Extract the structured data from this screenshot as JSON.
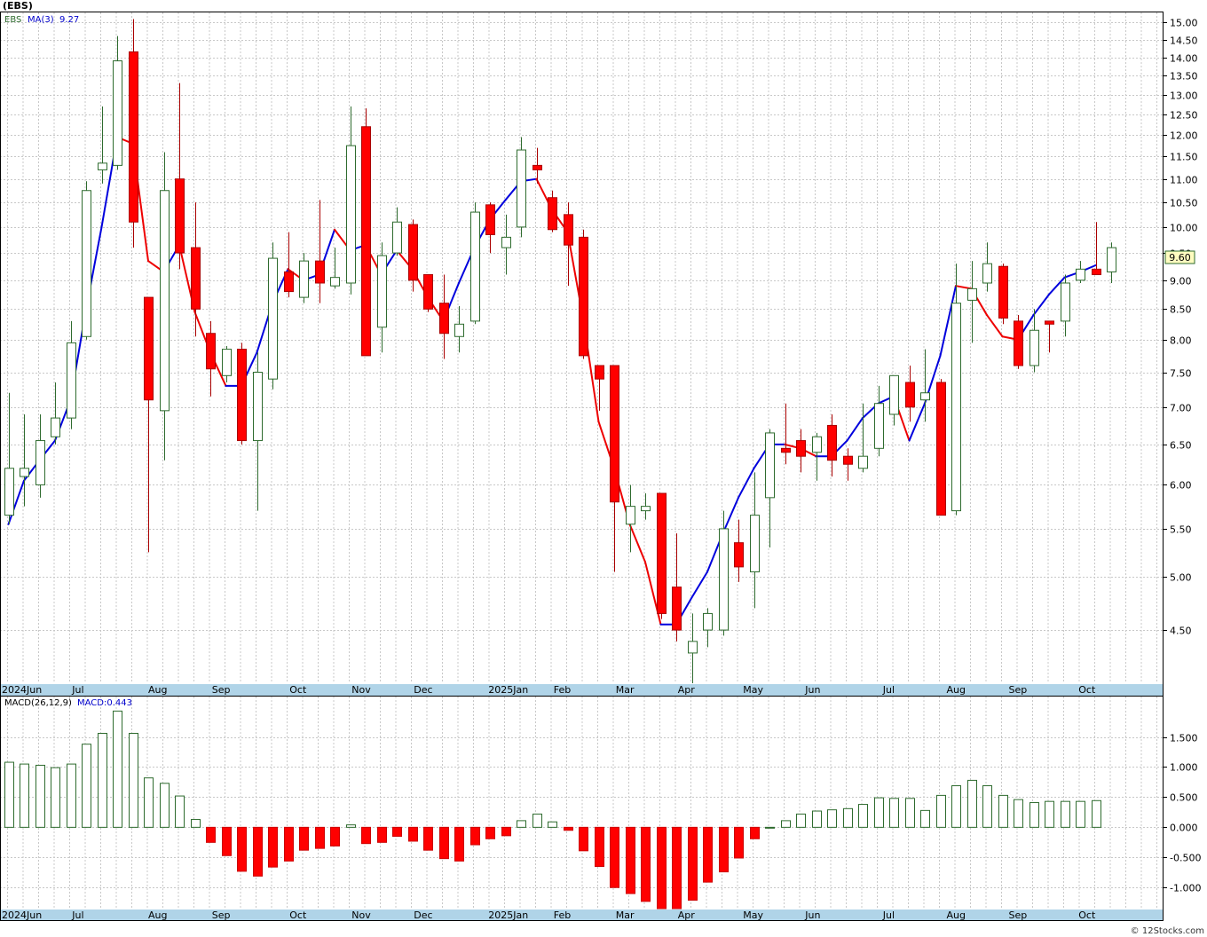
{
  "header": {
    "symbol": "(EBS)",
    "legend_ticker": "EBS",
    "legend_ma": "MA(3)",
    "legend_ma_value": "9.27",
    "last_price": "9.60"
  },
  "macd_legend": {
    "label": "MACD(26,12,9)",
    "value": "MACD:0.443"
  },
  "footer": {
    "credit": "© 12Stocks.com"
  },
  "colors": {
    "up": "#2e6b2e",
    "down": "#ff0000",
    "ma_up": "#0000dd",
    "ma_down": "#ee0000",
    "axis_strip": "#b0d4e8",
    "grid": "#c8c8c8"
  },
  "chart_data": [
    {
      "type": "candlestick",
      "title": "",
      "interval": "weekly",
      "ylim": [
        4.05,
        15.3
      ],
      "y_scale": "log",
      "y_ticks": [
        "15.00",
        "14.50",
        "14.00",
        "13.50",
        "13.00",
        "12.50",
        "12.00",
        "11.50",
        "11.00",
        "10.50",
        "10.00",
        "9.50",
        "9.00",
        "8.50",
        "8.00",
        "7.50",
        "7.00",
        "6.50",
        "6.00",
        "5.50",
        "5.00",
        "4.50"
      ],
      "x_month_labels": [
        {
          "label": "2024Jun",
          "index": -0.4
        },
        {
          "label": "Jul",
          "index": 4.5
        },
        {
          "label": "Aug",
          "index": 9.4
        },
        {
          "label": "Sep",
          "index": 13.5
        },
        {
          "label": "Oct",
          "index": 18.5
        },
        {
          "label": "Nov",
          "index": 22.5
        },
        {
          "label": "Dec",
          "index": 26.5
        },
        {
          "label": "2025Jan",
          "index": 31.3
        },
        {
          "label": "Feb",
          "index": 35.5
        },
        {
          "label": "Mar",
          "index": 39.5
        },
        {
          "label": "Apr",
          "index": 43.5
        },
        {
          "label": "May",
          "index": 47.7
        },
        {
          "label": "Jun",
          "index": 51.7
        },
        {
          "label": "Jul",
          "index": 56.7
        },
        {
          "label": "Aug",
          "index": 60.8
        },
        {
          "label": "Sep",
          "index": 64.8
        },
        {
          "label": "Oct",
          "index": 69.3
        }
      ],
      "grid": true,
      "moving_average": {
        "name": "MA(3)",
        "last": 9.27
      },
      "candles": [
        {
          "o": 5.65,
          "h": 7.2,
          "l": 5.55,
          "c": 6.2
        },
        {
          "o": 6.1,
          "h": 6.9,
          "l": 5.75,
          "c": 6.2
        },
        {
          "o": 6.0,
          "h": 6.9,
          "l": 5.85,
          "c": 6.55
        },
        {
          "o": 6.6,
          "h": 7.35,
          "l": 6.5,
          "c": 6.85
        },
        {
          "o": 6.85,
          "h": 8.3,
          "l": 6.7,
          "c": 7.95
        },
        {
          "o": 8.05,
          "h": 10.95,
          "l": 8.0,
          "c": 10.75
        },
        {
          "o": 11.2,
          "h": 12.7,
          "l": 10.9,
          "c": 11.35
        },
        {
          "o": 11.3,
          "h": 14.6,
          "l": 11.2,
          "c": 13.9
        },
        {
          "o": 14.15,
          "h": 15.1,
          "l": 9.6,
          "c": 10.1
        },
        {
          "o": 8.7,
          "h": 8.7,
          "l": 5.25,
          "c": 7.1
        },
        {
          "o": 6.95,
          "h": 11.6,
          "l": 6.3,
          "c": 10.75
        },
        {
          "o": 11.0,
          "h": 13.3,
          "l": 9.2,
          "c": 9.5
        },
        {
          "o": 9.6,
          "h": 10.5,
          "l": 8.05,
          "c": 8.5
        },
        {
          "o": 8.1,
          "h": 8.3,
          "l": 7.15,
          "c": 7.55
        },
        {
          "o": 7.45,
          "h": 7.9,
          "l": 7.35,
          "c": 7.85
        },
        {
          "o": 7.85,
          "h": 7.95,
          "l": 6.5,
          "c": 6.55
        },
        {
          "o": 6.55,
          "h": 7.8,
          "l": 5.7,
          "c": 7.5
        },
        {
          "o": 7.4,
          "h": 9.7,
          "l": 7.25,
          "c": 9.4
        },
        {
          "o": 9.15,
          "h": 9.9,
          "l": 8.7,
          "c": 8.8
        },
        {
          "o": 8.7,
          "h": 9.5,
          "l": 8.6,
          "c": 9.35
        },
        {
          "o": 9.35,
          "h": 10.55,
          "l": 8.6,
          "c": 8.95
        },
        {
          "o": 8.9,
          "h": 9.6,
          "l": 8.85,
          "c": 9.05
        },
        {
          "o": 8.95,
          "h": 12.7,
          "l": 8.75,
          "c": 11.75
        },
        {
          "o": 12.2,
          "h": 12.65,
          "l": 7.75,
          "c": 7.75
        },
        {
          "o": 8.2,
          "h": 9.7,
          "l": 7.8,
          "c": 9.45
        },
        {
          "o": 9.5,
          "h": 10.4,
          "l": 9.45,
          "c": 10.1
        },
        {
          "o": 10.05,
          "h": 10.15,
          "l": 8.8,
          "c": 9.0
        },
        {
          "o": 9.1,
          "h": 9.1,
          "l": 8.45,
          "c": 8.5
        },
        {
          "o": 8.6,
          "h": 9.1,
          "l": 7.7,
          "c": 8.1
        },
        {
          "o": 8.05,
          "h": 8.55,
          "l": 7.8,
          "c": 8.25
        },
        {
          "o": 8.3,
          "h": 10.5,
          "l": 8.25,
          "c": 10.3
        },
        {
          "o": 10.45,
          "h": 10.5,
          "l": 9.5,
          "c": 9.85
        },
        {
          "o": 9.6,
          "h": 10.25,
          "l": 9.1,
          "c": 9.8
        },
        {
          "o": 10.0,
          "h": 11.95,
          "l": 9.8,
          "c": 11.65
        },
        {
          "o": 11.3,
          "h": 11.7,
          "l": 10.9,
          "c": 11.2
        },
        {
          "o": 10.6,
          "h": 10.75,
          "l": 9.9,
          "c": 9.95
        },
        {
          "o": 10.25,
          "h": 10.5,
          "l": 8.9,
          "c": 9.65
        },
        {
          "o": 9.8,
          "h": 9.95,
          "l": 7.7,
          "c": 7.75
        },
        {
          "o": 7.6,
          "h": 7.6,
          "l": 6.95,
          "c": 7.4
        },
        {
          "o": 7.6,
          "h": 7.6,
          "l": 5.05,
          "c": 5.8
        },
        {
          "o": 5.55,
          "h": 6.0,
          "l": 5.25,
          "c": 5.75
        },
        {
          "o": 5.7,
          "h": 5.9,
          "l": 5.6,
          "c": 5.75
        },
        {
          "o": 5.9,
          "h": 5.9,
          "l": 4.6,
          "c": 4.65
        },
        {
          "o": 4.9,
          "h": 5.45,
          "l": 4.4,
          "c": 4.5
        },
        {
          "o": 4.3,
          "h": 4.65,
          "l": 4.05,
          "c": 4.4
        },
        {
          "o": 4.5,
          "h": 4.7,
          "l": 4.35,
          "c": 4.65
        },
        {
          "o": 4.5,
          "h": 5.7,
          "l": 4.45,
          "c": 5.5
        },
        {
          "o": 5.35,
          "h": 5.6,
          "l": 4.95,
          "c": 5.1
        },
        {
          "o": 5.05,
          "h": 6.15,
          "l": 4.7,
          "c": 5.65
        },
        {
          "o": 5.85,
          "h": 6.7,
          "l": 5.3,
          "c": 6.65
        },
        {
          "o": 6.45,
          "h": 7.05,
          "l": 6.25,
          "c": 6.4
        },
        {
          "o": 6.55,
          "h": 6.7,
          "l": 6.15,
          "c": 6.35
        },
        {
          "o": 6.4,
          "h": 6.65,
          "l": 6.05,
          "c": 6.6
        },
        {
          "o": 6.75,
          "h": 6.9,
          "l": 6.1,
          "c": 6.3
        },
        {
          "o": 6.35,
          "h": 6.45,
          "l": 6.05,
          "c": 6.25
        },
        {
          "o": 6.2,
          "h": 7.05,
          "l": 6.15,
          "c": 6.35
        },
        {
          "o": 6.45,
          "h": 7.3,
          "l": 6.35,
          "c": 7.05
        },
        {
          "o": 6.9,
          "h": 7.45,
          "l": 6.75,
          "c": 7.45
        },
        {
          "o": 7.35,
          "h": 7.6,
          "l": 6.8,
          "c": 7.0
        },
        {
          "o": 7.1,
          "h": 7.85,
          "l": 6.8,
          "c": 7.2
        },
        {
          "o": 7.35,
          "h": 7.4,
          "l": 5.65,
          "c": 5.65
        },
        {
          "o": 5.7,
          "h": 9.3,
          "l": 5.65,
          "c": 8.6
        },
        {
          "o": 8.65,
          "h": 9.35,
          "l": 7.95,
          "c": 8.85
        },
        {
          "o": 8.95,
          "h": 9.7,
          "l": 8.8,
          "c": 9.3
        },
        {
          "o": 9.25,
          "h": 9.3,
          "l": 8.25,
          "c": 8.35
        },
        {
          "o": 8.3,
          "h": 8.4,
          "l": 7.55,
          "c": 7.6
        },
        {
          "o": 7.6,
          "h": 8.5,
          "l": 7.5,
          "c": 8.15
        },
        {
          "o": 8.3,
          "h": 8.3,
          "l": 7.8,
          "c": 8.25
        },
        {
          "o": 8.3,
          "h": 9.1,
          "l": 8.05,
          "c": 8.95
        },
        {
          "o": 9.0,
          "h": 9.35,
          "l": 8.95,
          "c": 9.2
        },
        {
          "o": 9.2,
          "h": 10.1,
          "l": 9.1,
          "c": 9.1
        },
        {
          "o": 9.15,
          "h": 9.7,
          "l": 8.95,
          "c": 9.6
        }
      ],
      "ma_values": [
        5.55,
        6.05,
        6.3,
        6.55,
        7.1,
        8.5,
        10.0,
        11.95,
        11.8,
        9.35,
        9.15,
        9.65,
        8.45,
        7.8,
        7.3,
        7.3,
        7.8,
        8.6,
        9.2,
        9.0,
        9.1,
        9.95,
        9.55,
        9.65,
        9.1,
        9.55,
        9.2,
        8.7,
        8.3,
        8.95,
        9.6,
        10.15,
        10.55,
        10.95,
        11.0,
        10.35,
        9.9,
        8.35,
        6.8,
        6.2,
        5.55,
        5.15,
        4.55,
        4.55,
        4.8,
        5.05,
        5.45,
        5.85,
        6.2,
        6.5,
        6.5,
        6.45,
        6.35,
        6.35,
        6.55,
        6.85,
        7.05,
        7.15,
        6.55,
        7.05,
        7.75,
        8.9,
        8.85,
        8.4,
        8.05,
        8.0,
        8.4,
        8.75,
        9.05,
        9.15,
        9.27
      ]
    },
    {
      "type": "bar",
      "title": "",
      "name": "MACD(26,12,9)",
      "ylim": [
        -1.35,
        1.95
      ],
      "y_ticks": [
        "1.500",
        "1.000",
        "0.500",
        "0.000",
        "-0.500",
        "-1.000"
      ],
      "last": 0.443,
      "values": [
        1.08,
        1.05,
        1.03,
        0.99,
        1.05,
        1.38,
        1.56,
        1.93,
        1.56,
        0.82,
        0.73,
        0.52,
        0.13,
        -0.25,
        -0.47,
        -0.73,
        -0.81,
        -0.66,
        -0.56,
        -0.38,
        -0.35,
        -0.31,
        0.04,
        -0.27,
        -0.25,
        -0.15,
        -0.23,
        -0.38,
        -0.52,
        -0.56,
        -0.29,
        -0.19,
        -0.14,
        0.11,
        0.22,
        0.09,
        -0.05,
        -0.39,
        -0.65,
        -1.0,
        -1.1,
        -1.23,
        -1.35,
        -1.35,
        -1.21,
        -0.91,
        -0.74,
        -0.51,
        -0.19,
        0.0,
        0.11,
        0.22,
        0.27,
        0.29,
        0.31,
        0.38,
        0.49,
        0.48,
        0.48,
        0.28,
        0.53,
        0.69,
        0.78,
        0.69,
        0.53,
        0.46,
        0.41,
        0.43,
        0.43,
        0.43,
        0.443
      ]
    }
  ]
}
